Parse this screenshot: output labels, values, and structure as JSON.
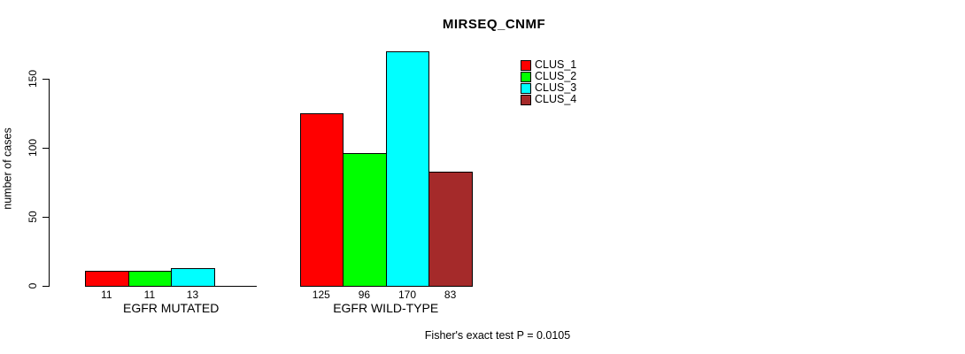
{
  "title": "MIRSEQ_CNMF",
  "y_axis": {
    "label": "number of cases",
    "ticks": [
      "0",
      "50",
      "100",
      "150"
    ]
  },
  "footer": "Fisher's exact test P = 0.0105",
  "legend": {
    "items": [
      {
        "label": "CLUS_1",
        "color": "#ff0000"
      },
      {
        "label": "CLUS_2",
        "color": "#00ff00"
      },
      {
        "label": "CLUS_3",
        "color": "#00ffff"
      },
      {
        "label": "CLUS_4",
        "color": "#a52a2a"
      }
    ]
  },
  "chart_data": {
    "type": "bar",
    "title": "MIRSEQ_CNMF",
    "xlabel": "",
    "ylabel": "number of cases",
    "ylim": [
      0,
      170
    ],
    "y_ticks": [
      0,
      50,
      100,
      150
    ],
    "grid": false,
    "legend_position": "top-right",
    "categories": [
      "EGFR MUTATED",
      "EGFR WILD-TYPE"
    ],
    "series": [
      {
        "name": "CLUS_1",
        "color": "#ff0000",
        "values": [
          11,
          125
        ]
      },
      {
        "name": "CLUS_2",
        "color": "#00ff00",
        "values": [
          11,
          96
        ]
      },
      {
        "name": "CLUS_3",
        "color": "#00ffff",
        "values": [
          13,
          170
        ]
      },
      {
        "name": "CLUS_4",
        "color": "#a52a2a",
        "values": [
          0,
          83
        ]
      }
    ],
    "bar_value_labels": [
      [
        "11",
        "11",
        "13",
        ""
      ],
      [
        "125",
        "96",
        "170",
        "83"
      ]
    ],
    "annotation": "Fisher's exact test P = 0.0105"
  }
}
